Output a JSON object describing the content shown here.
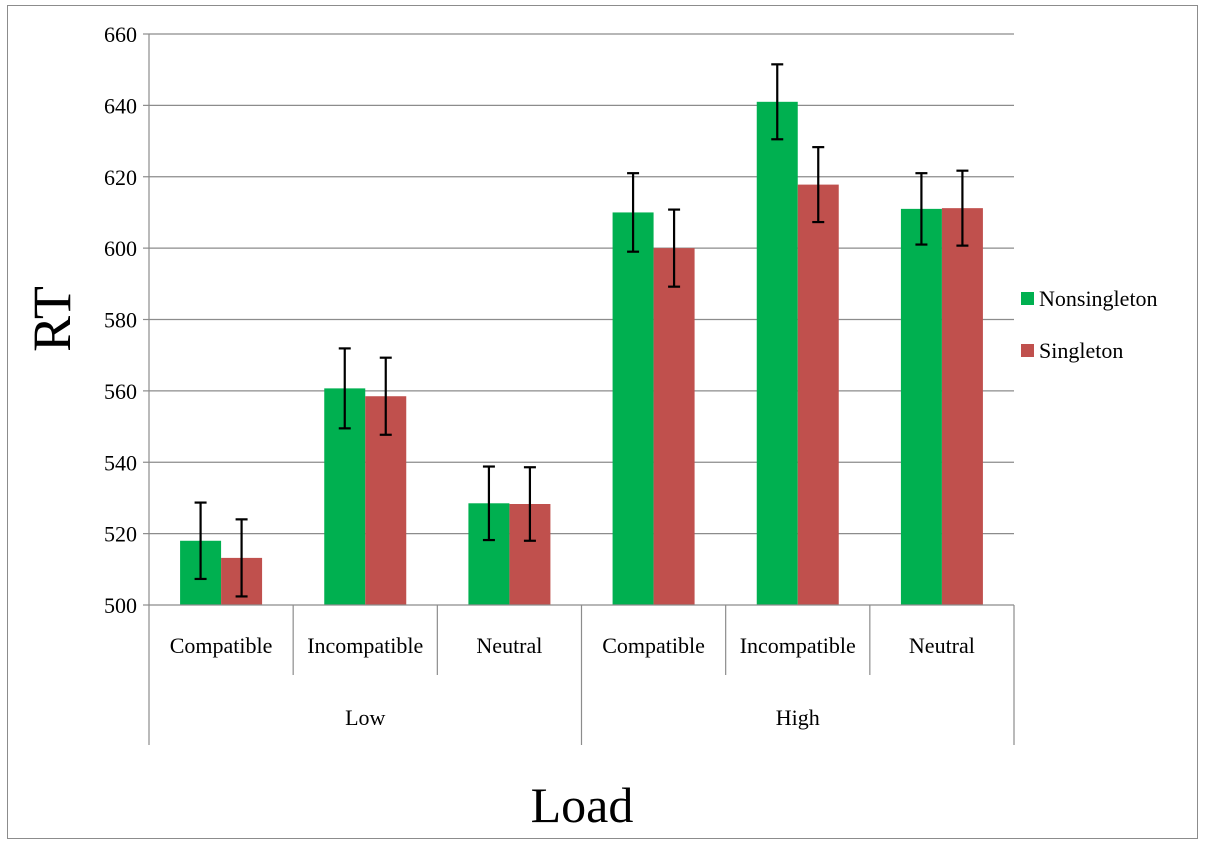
{
  "chart_data": {
    "type": "bar",
    "xlabel": "Load",
    "ylabel": "RT",
    "ylim": [
      500,
      660
    ],
    "yticks": [
      500,
      520,
      540,
      560,
      580,
      600,
      620,
      640,
      660
    ],
    "grid": true,
    "legend_position": "right",
    "groups": [
      {
        "label": "Low",
        "categories": [
          "Compatible",
          "Incompatible",
          "Neutral"
        ]
      },
      {
        "label": "High",
        "categories": [
          "Compatible",
          "Incompatible",
          "Neutral"
        ]
      }
    ],
    "categories": [
      "Compatible",
      "Incompatible",
      "Neutral",
      "Compatible",
      "Incompatible",
      "Neutral"
    ],
    "series": [
      {
        "name": "Nonsingleton",
        "color": "#00b050",
        "values": [
          518,
          560.7,
          528.5,
          610,
          641,
          611
        ],
        "errors": [
          10.7,
          11.2,
          10.3,
          11,
          10.5,
          10
        ]
      },
      {
        "name": "Singleton",
        "color": "#c0504d",
        "values": [
          513.2,
          558.5,
          528.3,
          600,
          617.8,
          611.2
        ],
        "errors": [
          10.8,
          10.8,
          10.3,
          10.8,
          10.5,
          10.5
        ]
      }
    ]
  }
}
